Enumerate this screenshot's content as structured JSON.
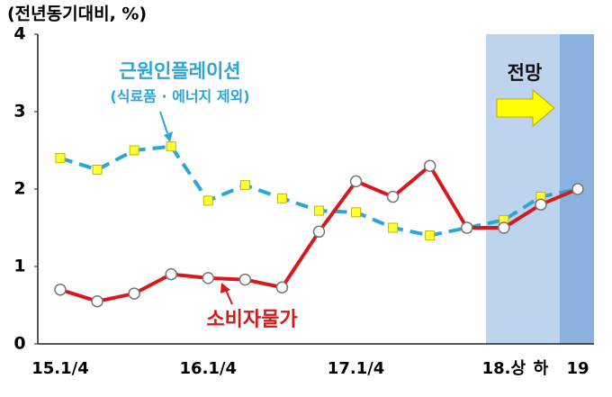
{
  "chart_data": {
    "type": "line",
    "y_label": "(전년동기대비, %)",
    "categories": [
      "15.1/4",
      null,
      null,
      null,
      "16.1/4",
      null,
      null,
      null,
      "17.1/4",
      null,
      null,
      null,
      "18.상",
      "하",
      "19"
    ],
    "series": [
      {
        "name": "소비자물가",
        "color": "#d7191c",
        "values": [
          0.7,
          0.55,
          0.65,
          0.9,
          0.85,
          0.83,
          0.73,
          1.45,
          2.1,
          1.9,
          2.3,
          1.5,
          1.5,
          1.8,
          2.0
        ]
      },
      {
        "name": "근원인플레이션",
        "color": "#2aa7d6",
        "values": [
          2.4,
          2.25,
          2.5,
          2.55,
          1.85,
          2.05,
          1.88,
          1.72,
          1.7,
          1.5,
          1.4,
          1.5,
          1.6,
          1.9,
          2.0
        ]
      }
    ],
    "annotations": [
      "(식료품 · 에너지 제외)",
      "전망"
    ],
    "ylim": [
      0,
      4
    ],
    "yticks": [
      0,
      1,
      2,
      3,
      4
    ],
    "grid": false
  }
}
